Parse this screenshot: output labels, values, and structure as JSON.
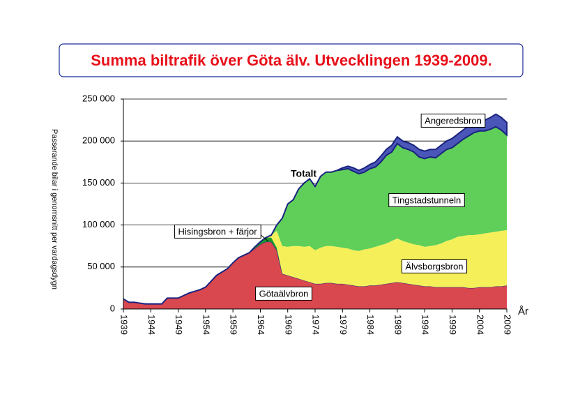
{
  "chart_data": {
    "type": "stacked_area",
    "title": "Summa biltrafik över Göta älv. Utvecklingen 1939-2009.",
    "ylabel": "Passerande bilar i genomsnitt per vardagsdygn",
    "xlabel": "År",
    "annotation": "Totalt",
    "x": [
      1939,
      1940,
      1941,
      1942,
      1943,
      1944,
      1945,
      1946,
      1947,
      1948,
      1949,
      1950,
      1951,
      1952,
      1953,
      1954,
      1955,
      1956,
      1957,
      1958,
      1959,
      1960,
      1961,
      1962,
      1963,
      1964,
      1965,
      1966,
      1967,
      1968,
      1969,
      1970,
      1971,
      1972,
      1973,
      1974,
      1975,
      1976,
      1977,
      1978,
      1979,
      1980,
      1981,
      1982,
      1983,
      1984,
      1985,
      1986,
      1987,
      1988,
      1989,
      1990,
      1991,
      1992,
      1993,
      1994,
      1995,
      1996,
      1997,
      1998,
      1999,
      2000,
      2001,
      2002,
      2003,
      2004,
      2005,
      2006,
      2007,
      2008,
      2009
    ],
    "series": [
      {
        "name": "Götaälvbron",
        "color": "#d9474f",
        "values": [
          12000,
          8000,
          8000,
          7000,
          6000,
          6000,
          6000,
          6000,
          13000,
          13000,
          13000,
          16000,
          19000,
          21000,
          23000,
          26000,
          33000,
          40000,
          44000,
          48000,
          55000,
          61000,
          64000,
          67000,
          72000,
          77000,
          80000,
          80000,
          70000,
          42000,
          40000,
          38000,
          36000,
          34000,
          32000,
          30000,
          30000,
          31000,
          31000,
          30000,
          30000,
          29000,
          28000,
          27000,
          27000,
          28000,
          28000,
          29000,
          30000,
          31000,
          32000,
          31000,
          30000,
          29000,
          28000,
          27000,
          27000,
          26000,
          26000,
          26000,
          26000,
          26000,
          26000,
          25000,
          25000,
          26000,
          26000,
          26000,
          27000,
          27000,
          28000
        ]
      },
      {
        "name": "Hisingsbron + färjor",
        "color": "#1a9a2a",
        "values": [
          0,
          0,
          0,
          0,
          0,
          0,
          0,
          0,
          0,
          0,
          0,
          0,
          0,
          0,
          0,
          0,
          0,
          0,
          0,
          0,
          0,
          0,
          0,
          0,
          2000,
          3000,
          5000,
          5000,
          3000,
          0,
          0,
          0,
          0,
          0,
          0,
          0,
          0,
          0,
          0,
          0,
          0,
          0,
          0,
          0,
          0,
          0,
          0,
          0,
          0,
          0,
          0,
          0,
          0,
          0,
          0,
          0,
          0,
          0,
          0,
          0,
          0,
          0,
          0,
          0,
          0,
          0,
          0,
          0,
          0,
          0,
          0
        ]
      },
      {
        "name": "Älvsborgsbron",
        "color": "#f5f05a",
        "values": [
          0,
          0,
          0,
          0,
          0,
          0,
          0,
          0,
          0,
          0,
          0,
          0,
          0,
          0,
          0,
          0,
          0,
          0,
          0,
          0,
          0,
          0,
          0,
          0,
          0,
          0,
          0,
          3000,
          20000,
          33000,
          34000,
          37000,
          39000,
          40000,
          43000,
          40000,
          43000,
          44000,
          44000,
          44000,
          43000,
          43000,
          42000,
          42000,
          44000,
          44000,
          46000,
          47000,
          48000,
          50000,
          52000,
          50000,
          49000,
          48000,
          48000,
          47000,
          48000,
          50000,
          52000,
          55000,
          57000,
          60000,
          61000,
          63000,
          63000,
          63000,
          64000,
          65000,
          65000,
          66000,
          66000
        ]
      },
      {
        "name": "Tingstadstunneln",
        "color": "#5fcf5a",
        "values": [
          0,
          0,
          0,
          0,
          0,
          0,
          0,
          0,
          0,
          0,
          0,
          0,
          0,
          0,
          0,
          0,
          0,
          0,
          0,
          0,
          0,
          0,
          0,
          0,
          0,
          0,
          0,
          0,
          7000,
          33000,
          51000,
          55000,
          68000,
          76000,
          80000,
          76000,
          85000,
          88000,
          88000,
          91000,
          93000,
          95000,
          94000,
          92000,
          92000,
          95000,
          95000,
          99000,
          105000,
          106000,
          113000,
          111000,
          111000,
          110000,
          105000,
          105000,
          106000,
          104000,
          107000,
          109000,
          109000,
          111000,
          115000,
          118000,
          122000,
          123000,
          122000,
          123000,
          125000,
          120000,
          113000
        ]
      },
      {
        "name": "Angeredsbron",
        "color": "#4a56b8",
        "values": [
          0,
          0,
          0,
          0,
          0,
          0,
          0,
          0,
          0,
          0,
          0,
          0,
          0,
          0,
          0,
          0,
          0,
          0,
          0,
          0,
          0,
          0,
          0,
          0,
          0,
          0,
          0,
          0,
          0,
          0,
          0,
          0,
          0,
          0,
          0,
          0,
          0,
          0,
          0,
          0,
          2000,
          3000,
          4000,
          4000,
          5000,
          5000,
          6000,
          7000,
          7000,
          8000,
          8000,
          8000,
          8000,
          8000,
          9000,
          9000,
          9000,
          10000,
          10000,
          10000,
          11000,
          11000,
          11000,
          12000,
          12000,
          13000,
          13000,
          14000,
          15000,
          15000,
          15000
        ]
      }
    ],
    "xlim": [
      1939,
      2009
    ],
    "xticks": [
      1939,
      1944,
      1949,
      1954,
      1959,
      1964,
      1969,
      1974,
      1979,
      1984,
      1989,
      1994,
      1999,
      2004,
      2009
    ],
    "ylim": [
      0,
      250000
    ],
    "yticks": [
      {
        "value": 0,
        "label": "0"
      },
      {
        "value": 50000,
        "label": "50 000"
      },
      {
        "value": 100000,
        "label": "100 000"
      },
      {
        "value": 150000,
        "label": "150 000"
      },
      {
        "value": 200000,
        "label": "200 000"
      },
      {
        "value": 250000,
        "label": "250 000"
      }
    ],
    "grid": true
  }
}
